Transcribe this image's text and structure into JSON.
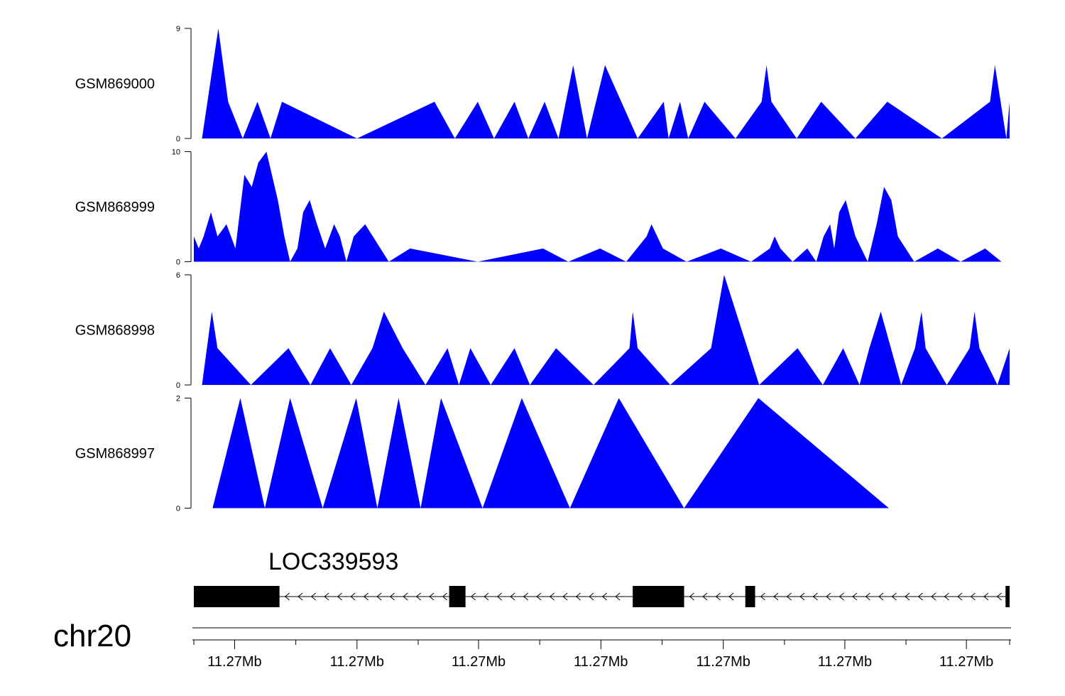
{
  "chart_data": {
    "type": "area",
    "fill_color": "#0000ff",
    "gene_color": "#000000",
    "x_domain": [
      0,
      1000
    ],
    "tracks": [
      {
        "name": "GSM869000",
        "ylim": [
          0,
          9
        ],
        "y_ticks": [
          "0",
          "9"
        ],
        "points": [
          [
            10,
            0
          ],
          [
            30,
            9
          ],
          [
            42,
            3
          ],
          [
            60,
            0
          ],
          [
            78,
            3
          ],
          [
            94,
            0
          ],
          [
            108,
            3
          ],
          [
            200,
            0
          ],
          [
            295,
            3
          ],
          [
            320,
            0
          ],
          [
            348,
            3
          ],
          [
            368,
            0
          ],
          [
            393,
            3
          ],
          [
            410,
            0
          ],
          [
            430,
            3
          ],
          [
            447,
            0
          ],
          [
            465,
            6
          ],
          [
            482,
            0
          ],
          [
            504,
            6
          ],
          [
            544,
            0
          ],
          [
            576,
            3
          ],
          [
            582,
            0
          ],
          [
            596,
            3
          ],
          [
            606,
            0
          ],
          [
            626,
            3
          ],
          [
            664,
            0
          ],
          [
            696,
            3
          ],
          [
            702,
            6
          ],
          [
            708,
            3
          ],
          [
            739,
            0
          ],
          [
            769,
            3
          ],
          [
            811,
            0
          ],
          [
            850,
            3
          ],
          [
            917,
            0
          ],
          [
            976,
            3
          ],
          [
            982,
            6
          ],
          [
            996,
            0
          ],
          [
            1000,
            3
          ]
        ]
      },
      {
        "name": "GSM868999",
        "ylim": [
          0,
          10
        ],
        "y_ticks": [
          "0",
          "10"
        ],
        "points": [
          [
            0,
            2.3
          ],
          [
            6,
            1.2
          ],
          [
            12,
            2.3
          ],
          [
            21,
            4.5
          ],
          [
            29,
            2.3
          ],
          [
            40,
            3.4
          ],
          [
            51,
            1.2
          ],
          [
            62,
            7.9
          ],
          [
            71,
            6.8
          ],
          [
            79,
            9
          ],
          [
            89,
            10
          ],
          [
            103,
            5.6
          ],
          [
            111,
            2.3
          ],
          [
            118,
            0
          ],
          [
            127,
            1.2
          ],
          [
            134,
            4.5
          ],
          [
            142,
            5.6
          ],
          [
            151,
            3.4
          ],
          [
            161,
            1.2
          ],
          [
            172,
            3.4
          ],
          [
            179,
            2.3
          ],
          [
            187,
            0
          ],
          [
            196,
            2.3
          ],
          [
            210,
            3.4
          ],
          [
            239,
            0
          ],
          [
            265,
            1.2
          ],
          [
            348,
            0
          ],
          [
            428,
            1.2
          ],
          [
            459,
            0
          ],
          [
            498,
            1.2
          ],
          [
            530,
            0
          ],
          [
            555,
            2.3
          ],
          [
            561,
            3.4
          ],
          [
            575,
            1.2
          ],
          [
            604,
            0
          ],
          [
            646,
            1.2
          ],
          [
            683,
            0
          ],
          [
            706,
            1.2
          ],
          [
            712,
            2.3
          ],
          [
            719,
            1.2
          ],
          [
            734,
            0
          ],
          [
            752,
            1.2
          ],
          [
            763,
            0
          ],
          [
            772,
            2.3
          ],
          [
            780,
            3.4
          ],
          [
            785,
            1.2
          ],
          [
            791,
            4.5
          ],
          [
            799,
            5.6
          ],
          [
            811,
            2.3
          ],
          [
            826,
            0
          ],
          [
            837,
            3.4
          ],
          [
            846,
            6.8
          ],
          [
            855,
            5.6
          ],
          [
            863,
            2.3
          ],
          [
            883,
            0
          ],
          [
            912,
            1.2
          ],
          [
            940,
            0
          ],
          [
            970,
            1.2
          ],
          [
            990,
            0
          ]
        ]
      },
      {
        "name": "GSM868998",
        "ylim": [
          0,
          6
        ],
        "y_ticks": [
          "0",
          "6"
        ],
        "points": [
          [
            10,
            0
          ],
          [
            22,
            4
          ],
          [
            29,
            2
          ],
          [
            70,
            0
          ],
          [
            116,
            2
          ],
          [
            143,
            0
          ],
          [
            167,
            2
          ],
          [
            193,
            0
          ],
          [
            219,
            2
          ],
          [
            233,
            4
          ],
          [
            256,
            2
          ],
          [
            284,
            0
          ],
          [
            311,
            2
          ],
          [
            325,
            0
          ],
          [
            339,
            2
          ],
          [
            364,
            0
          ],
          [
            393,
            2
          ],
          [
            412,
            0
          ],
          [
            444,
            2
          ],
          [
            490,
            0
          ],
          [
            534,
            2
          ],
          [
            538,
            4
          ],
          [
            544,
            2
          ],
          [
            584,
            0
          ],
          [
            634,
            2
          ],
          [
            650,
            6
          ],
          [
            693,
            0
          ],
          [
            740,
            2
          ],
          [
            771,
            0
          ],
          [
            796,
            2
          ],
          [
            816,
            0
          ],
          [
            828,
            2
          ],
          [
            842,
            4
          ],
          [
            867,
            0
          ],
          [
            884,
            2
          ],
          [
            892,
            4
          ],
          [
            897,
            2
          ],
          [
            923,
            0
          ],
          [
            951,
            2
          ],
          [
            957,
            4
          ],
          [
            963,
            2
          ],
          [
            985,
            0
          ],
          [
            1000,
            2
          ]
        ]
      },
      {
        "name": "GSM868997",
        "ylim": [
          0,
          2
        ],
        "y_ticks": [
          "0",
          "2"
        ],
        "points": [
          [
            23,
            0
          ],
          [
            57,
            2
          ],
          [
            87,
            0
          ],
          [
            118,
            2
          ],
          [
            158,
            0
          ],
          [
            199,
            2
          ],
          [
            225,
            0
          ],
          [
            251,
            2
          ],
          [
            278,
            0
          ],
          [
            303,
            2
          ],
          [
            354,
            0
          ],
          [
            402,
            2
          ],
          [
            461,
            0
          ],
          [
            521,
            2
          ],
          [
            601,
            0
          ],
          [
            692,
            2
          ],
          [
            852,
            0
          ]
        ]
      }
    ],
    "gene": {
      "name": "LOC339593",
      "strand": "-",
      "span": [
        0,
        1000
      ],
      "exons": [
        [
          0,
          105
        ],
        [
          313,
          333
        ],
        [
          538,
          601
        ],
        [
          676,
          688
        ],
        [
          995,
          1000
        ]
      ]
    },
    "chromosome": "chr20",
    "axis_major_ticks": [
      {
        "pos": 50,
        "label": "11.27Mb"
      },
      {
        "pos": 200,
        "label": "11.27Mb"
      },
      {
        "pos": 349,
        "label": "11.27Mb"
      },
      {
        "pos": 499,
        "label": "11.27Mb"
      },
      {
        "pos": 649,
        "label": "11.27Mb"
      },
      {
        "pos": 798,
        "label": "11.27Mb"
      },
      {
        "pos": 947,
        "label": "11.27Mb"
      }
    ],
    "axis_minor_ticks": [
      0,
      125,
      275,
      424,
      574,
      724,
      873,
      1000
    ]
  }
}
